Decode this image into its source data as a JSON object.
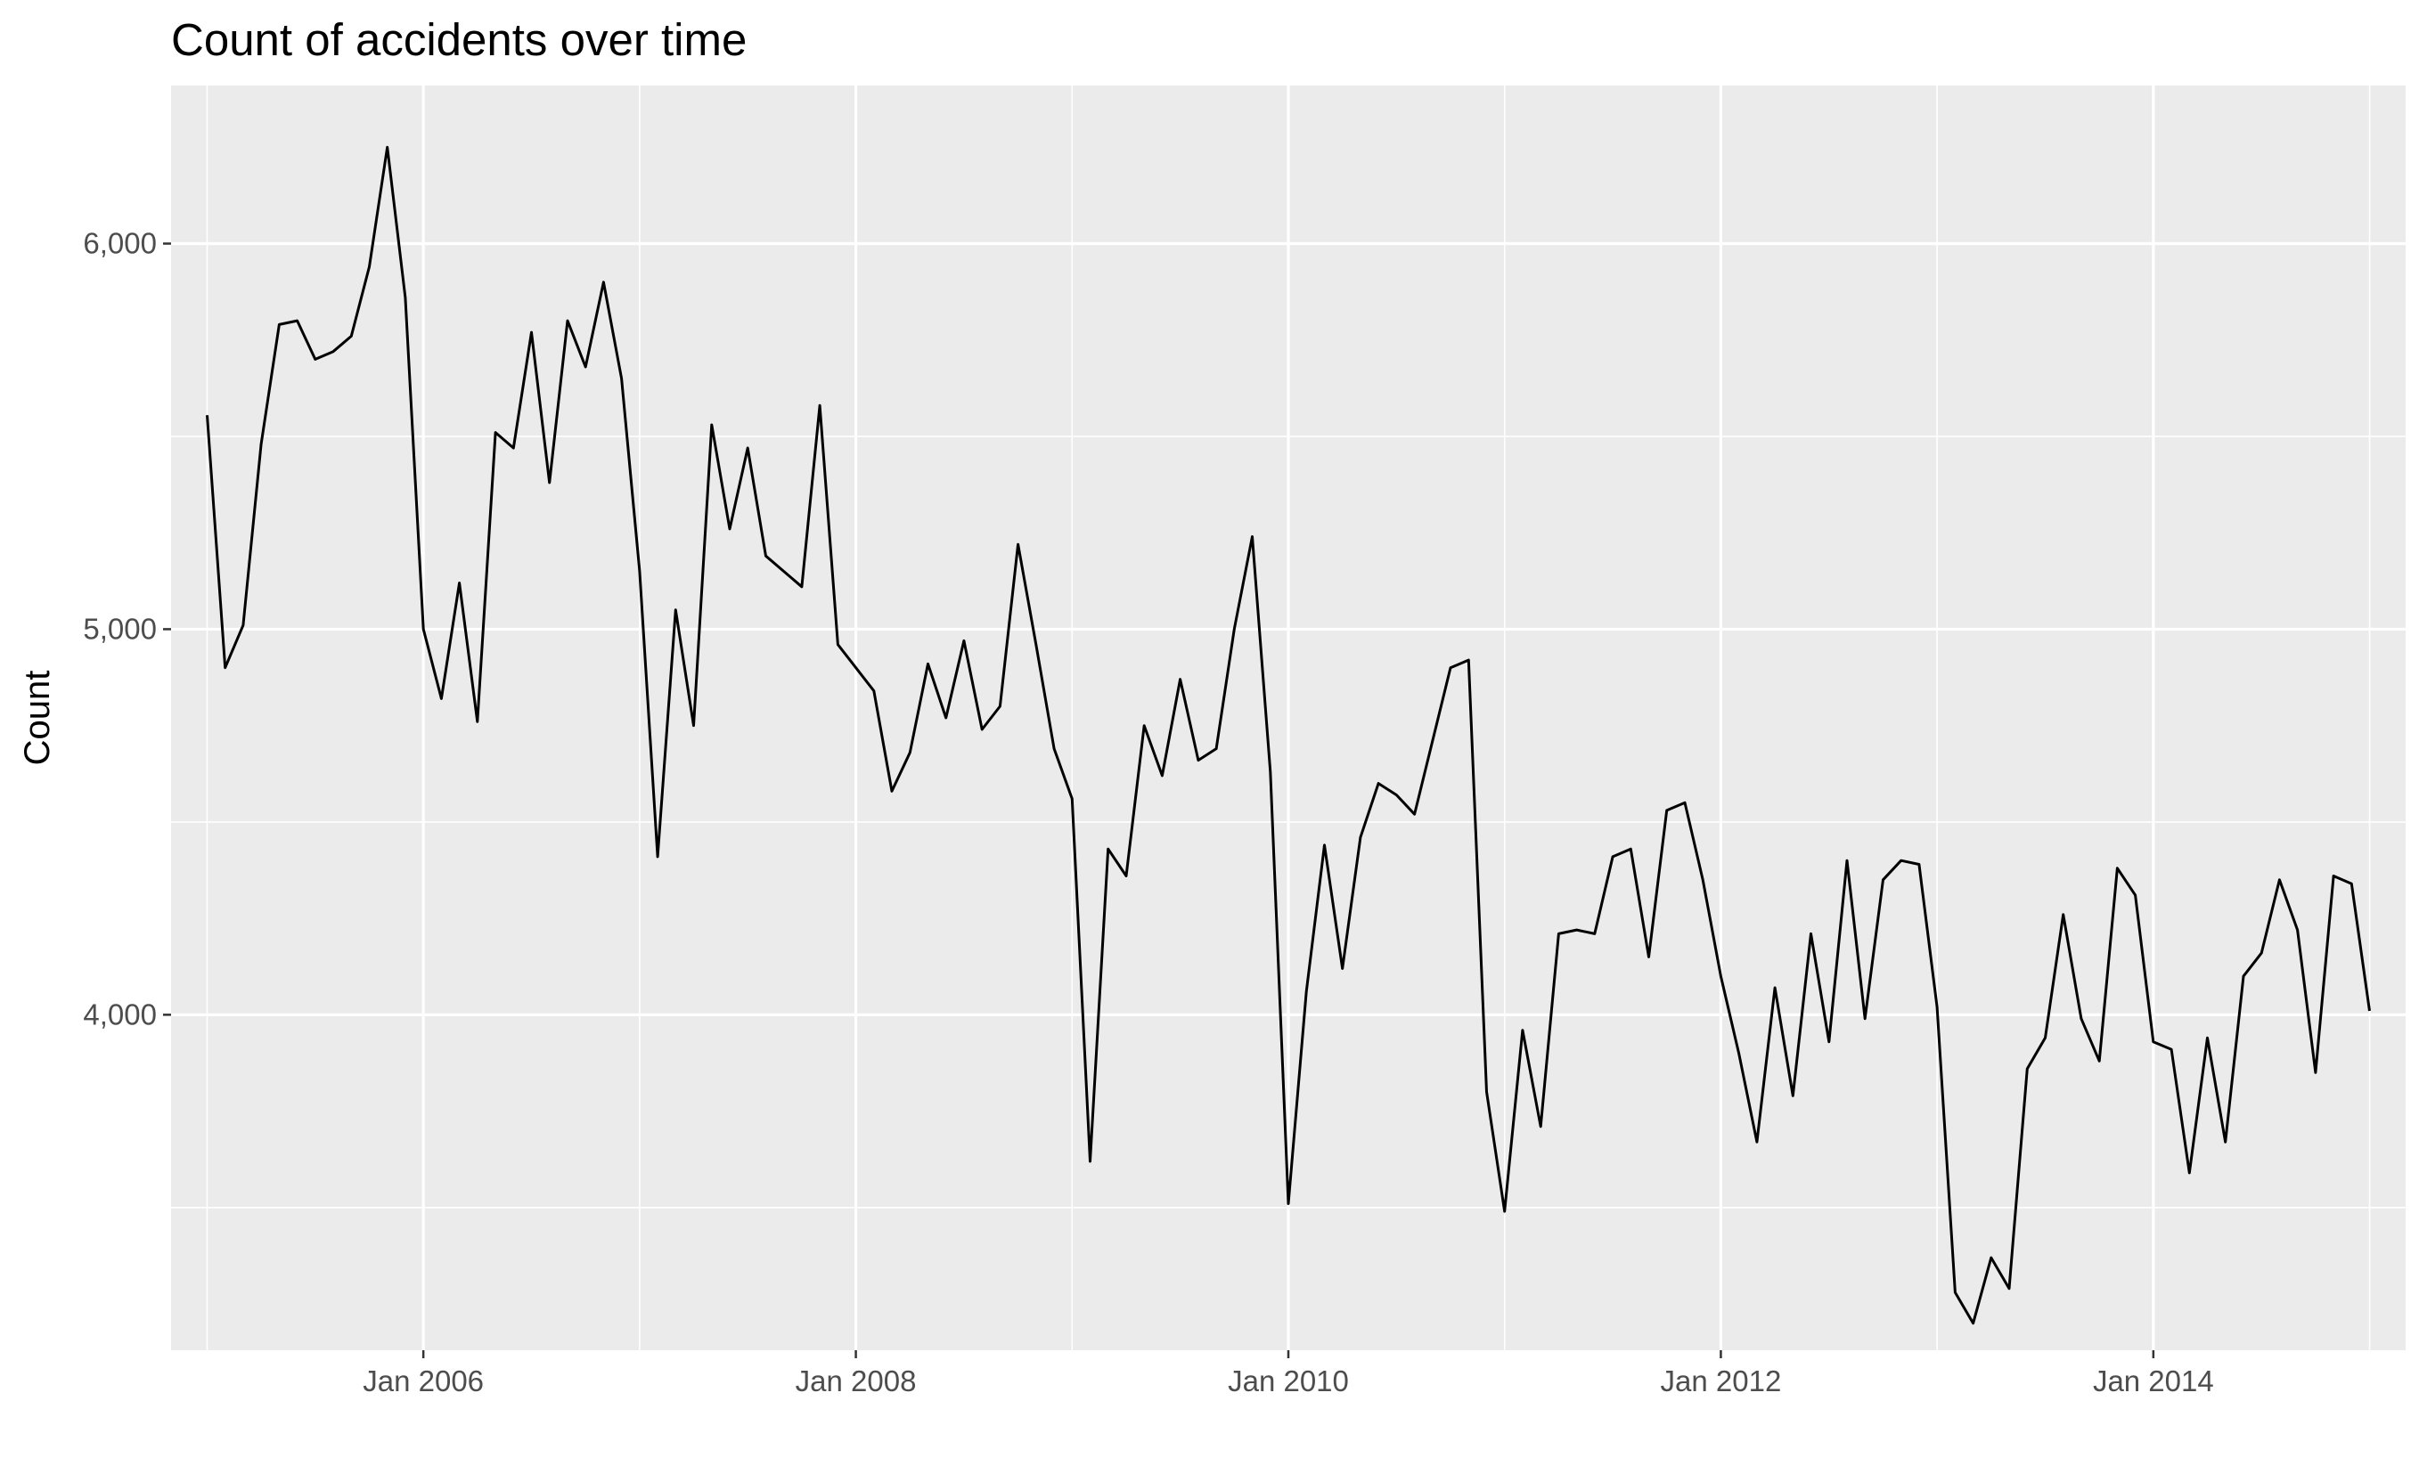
{
  "chart_data": {
    "type": "line",
    "title": "Count of accidents over time",
    "xlabel": "",
    "ylabel": "Count",
    "xlim": [
      "2004-11",
      "2015-03"
    ],
    "ylim": [
      3130,
      6410
    ],
    "x_ticks": [
      {
        "date": "2006-01",
        "label": "Jan 2006"
      },
      {
        "date": "2008-01",
        "label": "Jan 2008"
      },
      {
        "date": "2010-01",
        "label": "Jan 2010"
      },
      {
        "date": "2012-01",
        "label": "Jan 2012"
      },
      {
        "date": "2014-01",
        "label": "Jan 2014"
      }
    ],
    "x_minor_ticks": [
      "2005-01",
      "2007-01",
      "2009-01",
      "2011-01",
      "2013-01",
      "2015-01"
    ],
    "y_ticks": [
      {
        "value": 4000,
        "label": "4,000"
      },
      {
        "value": 5000,
        "label": "5,000"
      },
      {
        "value": 6000,
        "label": "6,000"
      }
    ],
    "y_minor_ticks": [
      3500,
      4500,
      5500
    ],
    "grid": true,
    "background": "#ebebeb",
    "line_color": "#000000",
    "series": [
      {
        "start": "2005-01",
        "frequency": "monthly",
        "values": [
          5555,
          4900,
          5010,
          5480,
          5790,
          5800,
          5700,
          5720,
          5760,
          5940,
          6250,
          5860,
          5000,
          4820,
          5120,
          4760,
          5510,
          5470,
          5770,
          5380,
          5800,
          5680,
          5900,
          5650,
          5150,
          4410,
          5050,
          4750,
          5530,
          5260,
          5470,
          5190,
          5150,
          5110,
          5580,
          4960,
          4900,
          4840,
          4580,
          4680,
          4910,
          4770,
          4970,
          4740,
          4800,
          5220,
          4960,
          4690,
          4560,
          3620,
          4430,
          4360,
          4750,
          4620,
          4870,
          4660,
          4690,
          5000,
          5240,
          4630,
          3510,
          4060,
          4440,
          4120,
          4460,
          4600,
          4570,
          4520,
          4710,
          4900,
          4920,
          3800,
          3490,
          3960,
          3710,
          4210,
          4220,
          4210,
          4410,
          4430,
          4150,
          4530,
          4550,
          4350,
          4100,
          3900,
          3670,
          4070,
          3790,
          4210,
          3930,
          4400,
          3990,
          4350,
          4400,
          4390,
          4020,
          3280,
          3200,
          3370,
          3290,
          3860,
          3940,
          4260,
          3990,
          3880,
          4380,
          4310,
          3930,
          3910,
          3590,
          3940,
          3670,
          4100,
          4160,
          4350,
          4220,
          3850,
          4360,
          4340,
          4010
        ]
      }
    ]
  }
}
